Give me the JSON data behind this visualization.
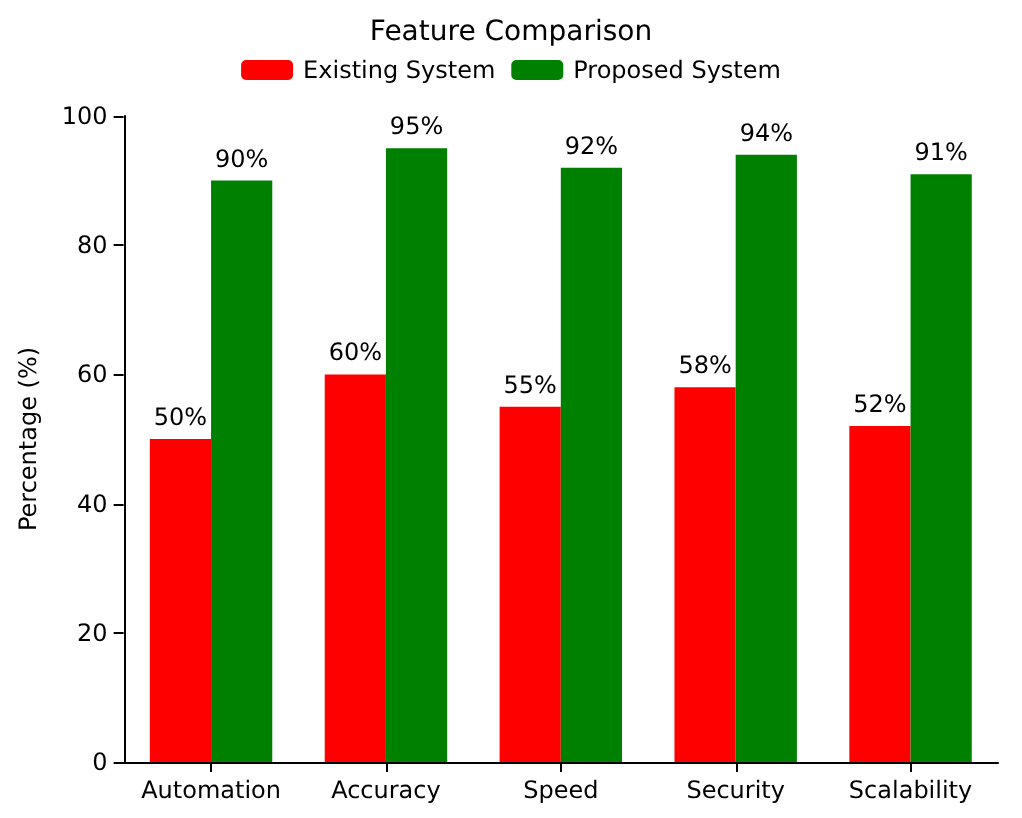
{
  "chart_data": {
    "type": "bar",
    "title": "Feature Comparison",
    "ylabel": "Percentage (%)",
    "categories": [
      "Automation",
      "Accuracy",
      "Speed",
      "Security",
      "Scalability"
    ],
    "series": [
      {
        "name": "Existing System",
        "color": "#ff0000",
        "values": [
          50,
          60,
          55,
          58,
          52
        ],
        "value_labels": [
          "50%",
          "60%",
          "55%",
          "58%",
          "52%"
        ]
      },
      {
        "name": "Proposed System",
        "color": "#008000",
        "values": [
          90,
          95,
          92,
          94,
          91
        ],
        "value_labels": [
          "90%",
          "95%",
          "92%",
          "94%",
          "91%"
        ]
      }
    ],
    "ylim": [
      0,
      100
    ],
    "yticks": [
      0,
      20,
      40,
      60,
      80,
      100
    ],
    "grid": false,
    "legend": "top"
  }
}
